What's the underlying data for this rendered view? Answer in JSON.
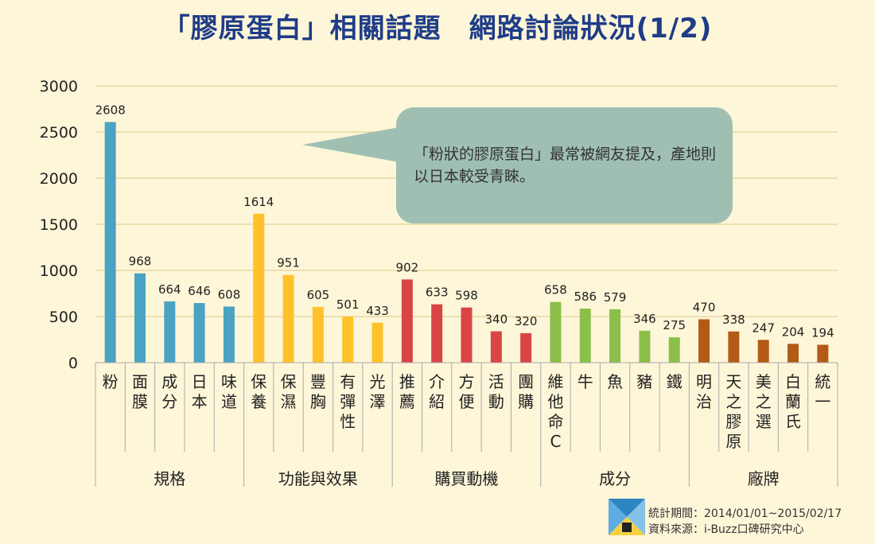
{
  "title": "「膠原蛋白」相關話題　網路討論狀況(1/2)",
  "callout": "「粉狀的膠原蛋白」最常被網友提及，產地則以日本較受青睞。",
  "footer": {
    "period": "統計期間：2014/01/01~2015/02/17",
    "source": "資料來源：i-Buzz口碑研究中心"
  },
  "chart_data": {
    "type": "bar",
    "ylim": [
      0,
      3000
    ],
    "yticks": [
      0,
      500,
      1000,
      1500,
      2000,
      2500,
      3000
    ],
    "grid": true,
    "categories": [
      "粉",
      "面膜",
      "成分",
      "日本",
      "味道",
      "保養",
      "保濕",
      "豐胸",
      "有彈性",
      "光澤",
      "推薦",
      "介紹",
      "方便",
      "活動",
      "團購",
      "維他命C",
      "牛",
      "魚",
      "豬",
      "鐵",
      "明治",
      "天之膠原",
      "美之選",
      "白蘭氏",
      "統一"
    ],
    "values": [
      2608,
      968,
      664,
      646,
      608,
      1614,
      951,
      605,
      501,
      433,
      902,
      633,
      598,
      340,
      320,
      658,
      586,
      579,
      346,
      275,
      470,
      338,
      247,
      204,
      194
    ],
    "groups": [
      {
        "name": "規格",
        "count": 5,
        "color": "#4aa3c2"
      },
      {
        "name": "功能與效果",
        "count": 5,
        "color": "#ffc22b"
      },
      {
        "name": "購買動機",
        "count": 5,
        "color": "#d94545"
      },
      {
        "name": "成分",
        "count": 5,
        "color": "#8bbf4a"
      },
      {
        "name": "廠牌",
        "count": 5,
        "color": "#b35a16"
      }
    ]
  }
}
